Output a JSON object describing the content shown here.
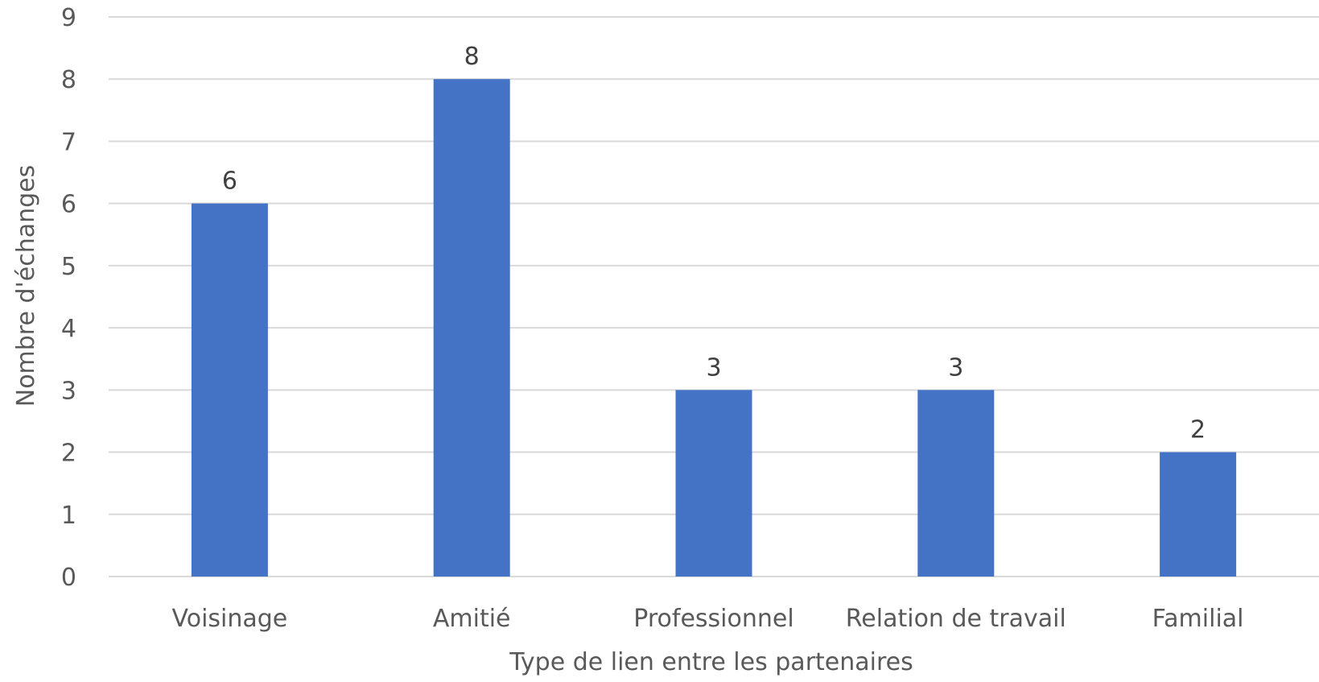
{
  "chart_data": {
    "type": "bar",
    "title": "",
    "xlabel": "Type de lien entre les partenaires",
    "ylabel": "Nombre d'échanges",
    "categories": [
      "Voisinage",
      "Amitié",
      "Professionnel",
      "Relation de travail",
      "Familial"
    ],
    "values": [
      6,
      8,
      3,
      3,
      2
    ],
    "ylim": [
      0,
      9
    ],
    "yticks": [
      "0",
      "1",
      "2",
      "3",
      "4",
      "5",
      "6",
      "7",
      "8",
      "9"
    ],
    "grid": true,
    "data_labels": true,
    "legend": "none",
    "bar_color": "#4472c4"
  }
}
